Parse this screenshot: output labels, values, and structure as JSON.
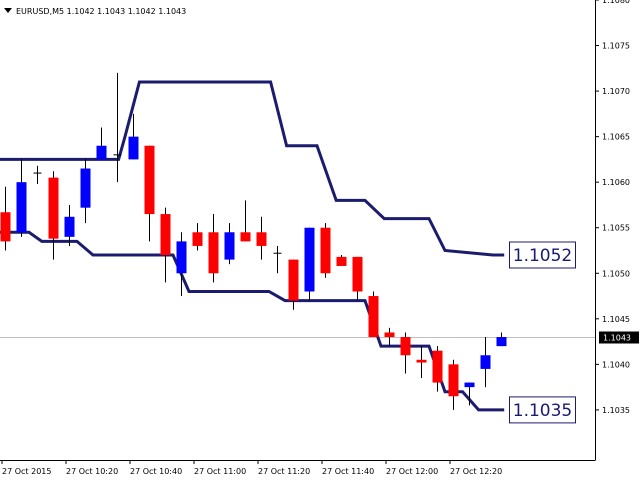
{
  "header": {
    "title": "EURUSD,M5  1.1042 1.1043 1.1042 1.1043",
    "collapse_icon": "triangle-down-icon"
  },
  "colors": {
    "background": "#ffffff",
    "bull_candle": "#0000ff",
    "bear_candle": "#ff0000",
    "neutral_candle": "#000000",
    "wick": "#000000",
    "channel_line": "#1c1c6e",
    "current_price_line": "#c0c0c0",
    "price_tag_bg": "#000000",
    "price_tag_text": "#ffffff",
    "level_box_border": "#1c1c6e",
    "axis": "#000000"
  },
  "chart_data": {
    "type": "candlestick",
    "symbol": "EURUSD",
    "timeframe": "M5",
    "ylim": [
      1.10295,
      1.108
    ],
    "y_ticks": [
      "1.1080",
      "1.1075",
      "1.1070",
      "1.1065",
      "1.1060",
      "1.1055",
      "1.1050",
      "1.1045",
      "1.1040",
      "1.1035"
    ],
    "x_ticks": [
      {
        "index": 0,
        "label": "27 Oct 2015"
      },
      {
        "index": 4,
        "label": "27 Oct 10:20"
      },
      {
        "index": 8,
        "label": "27 Oct 10:40"
      },
      {
        "index": 12,
        "label": "27 Oct 11:00"
      },
      {
        "index": 16,
        "label": "27 Oct 11:20"
      },
      {
        "index": 20,
        "label": "27 Oct 11:40"
      },
      {
        "index": 24,
        "label": "27 Oct 12:00"
      },
      {
        "index": 28,
        "label": "27 Oct 12:20"
      }
    ],
    "candles": [
      {
        "o": 1.10567,
        "h": 1.10595,
        "l": 1.10525,
        "c": 1.10535
      },
      {
        "o": 1.10545,
        "h": 1.10625,
        "l": 1.1054,
        "c": 1.106
      },
      {
        "o": 1.1061,
        "h": 1.10618,
        "l": 1.10598,
        "c": 1.1061
      },
      {
        "o": 1.10605,
        "h": 1.10612,
        "l": 1.10515,
        "c": 1.10538
      },
      {
        "o": 1.1054,
        "h": 1.10575,
        "l": 1.1053,
        "c": 1.10562
      },
      {
        "o": 1.10572,
        "h": 1.10625,
        "l": 1.10555,
        "c": 1.10615
      },
      {
        "o": 1.10625,
        "h": 1.1066,
        "l": 1.10625,
        "c": 1.1064
      },
      {
        "o": 1.1063,
        "h": 1.1072,
        "l": 1.106,
        "c": 1.1063
      },
      {
        "o": 1.10625,
        "h": 1.10675,
        "l": 1.10625,
        "c": 1.1065
      },
      {
        "o": 1.1064,
        "h": 1.1064,
        "l": 1.10535,
        "c": 1.10565
      },
      {
        "o": 1.10565,
        "h": 1.10572,
        "l": 1.1049,
        "c": 1.1052
      },
      {
        "o": 1.105,
        "h": 1.10545,
        "l": 1.10475,
        "c": 1.10535
      },
      {
        "o": 1.10545,
        "h": 1.10555,
        "l": 1.10525,
        "c": 1.1053
      },
      {
        "o": 1.10545,
        "h": 1.10565,
        "l": 1.1049,
        "c": 1.105
      },
      {
        "o": 1.10515,
        "h": 1.10555,
        "l": 1.1051,
        "c": 1.10545
      },
      {
        "o": 1.10545,
        "h": 1.1058,
        "l": 1.10535,
        "c": 1.10535
      },
      {
        "o": 1.10545,
        "h": 1.10562,
        "l": 1.10515,
        "c": 1.1053
      },
      {
        "o": 1.10522,
        "h": 1.1053,
        "l": 1.105,
        "c": 1.10522
      },
      {
        "o": 1.10515,
        "h": 1.10515,
        "l": 1.1046,
        "c": 1.1047
      },
      {
        "o": 1.1048,
        "h": 1.1055,
        "l": 1.1047,
        "c": 1.1055
      },
      {
        "o": 1.1055,
        "h": 1.10555,
        "l": 1.10495,
        "c": 1.105
      },
      {
        "o": 1.10518,
        "h": 1.1052,
        "l": 1.1051,
        "c": 1.10508
      },
      {
        "o": 1.10518,
        "h": 1.10518,
        "l": 1.1047,
        "c": 1.1048
      },
      {
        "o": 1.10475,
        "h": 1.1048,
        "l": 1.1043,
        "c": 1.1043
      },
      {
        "o": 1.10435,
        "h": 1.1044,
        "l": 1.1042,
        "c": 1.1043
      },
      {
        "o": 1.1043,
        "h": 1.10435,
        "l": 1.1039,
        "c": 1.1041
      },
      {
        "o": 1.10405,
        "h": 1.1042,
        "l": 1.10385,
        "c": 1.10402
      },
      {
        "o": 1.10415,
        "h": 1.1042,
        "l": 1.1037,
        "c": 1.1038
      },
      {
        "o": 1.104,
        "h": 1.10405,
        "l": 1.1035,
        "c": 1.10365
      },
      {
        "o": 1.10375,
        "h": 1.1038,
        "l": 1.10355,
        "c": 1.1038
      },
      {
        "o": 1.10395,
        "h": 1.1043,
        "l": 1.10375,
        "c": 1.1041
      },
      {
        "o": 1.1042,
        "h": 1.10435,
        "l": 1.1042,
        "c": 1.1043
      }
    ],
    "upper_band": [
      {
        "t": -0.4,
        "v": 1.10625
      },
      {
        "t": 7.1,
        "v": 1.10625
      },
      {
        "t": 7.5,
        "v": 1.1065
      },
      {
        "t": 8.4,
        "v": 1.1071
      },
      {
        "t": 16.6,
        "v": 1.1071
      },
      {
        "t": 17.6,
        "v": 1.1064
      },
      {
        "t": 19.5,
        "v": 1.1064
      },
      {
        "t": 20.7,
        "v": 1.1058
      },
      {
        "t": 22.5,
        "v": 1.1058
      },
      {
        "t": 23.7,
        "v": 1.1056
      },
      {
        "t": 26.5,
        "v": 1.1056
      },
      {
        "t": 27.5,
        "v": 1.10525
      },
      {
        "t": 30.5,
        "v": 1.1052
      },
      {
        "t": 31.2,
        "v": 1.1052
      }
    ],
    "lower_band": [
      {
        "t": -0.4,
        "v": 1.10545
      },
      {
        "t": 1.5,
        "v": 1.10545
      },
      {
        "t": 2.3,
        "v": 1.10535
      },
      {
        "t": 4.5,
        "v": 1.10535
      },
      {
        "t": 5.5,
        "v": 1.1052
      },
      {
        "t": 10.5,
        "v": 1.1052
      },
      {
        "t": 11.5,
        "v": 1.1048
      },
      {
        "t": 16.5,
        "v": 1.1048
      },
      {
        "t": 17.5,
        "v": 1.1047
      },
      {
        "t": 22.5,
        "v": 1.1047
      },
      {
        "t": 23.5,
        "v": 1.1042
      },
      {
        "t": 26.5,
        "v": 1.1042
      },
      {
        "t": 27.5,
        "v": 1.1037
      },
      {
        "t": 28.6,
        "v": 1.1037
      },
      {
        "t": 29.6,
        "v": 1.1035
      },
      {
        "t": 31.2,
        "v": 1.1035
      }
    ],
    "upper_level": {
      "label": "1.1052",
      "value": 1.1052
    },
    "lower_level": {
      "label": "1.1035",
      "value": 1.1035
    },
    "current_price": {
      "label": "1.1043",
      "value": 1.1043
    }
  }
}
